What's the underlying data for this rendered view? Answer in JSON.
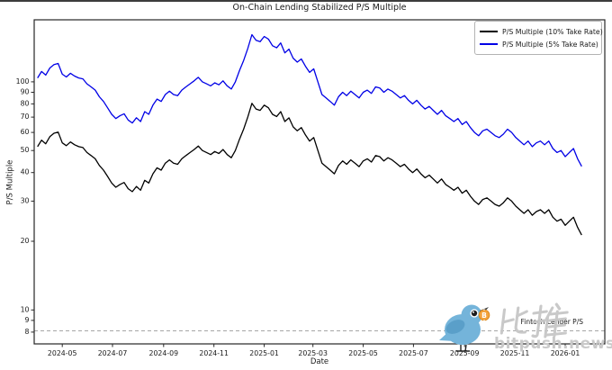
{
  "title": "On-Chain Lending Stabilized P/S Multiple",
  "watermark": {
    "brand_cjk": "比推",
    "brand_domain": "bitpush.news",
    "coin_symbol": "₿"
  },
  "chart_data": {
    "type": "line",
    "title": "On-Chain Lending Stabilized P/S Multiple",
    "xlabel": "Date",
    "ylabel": "P/S Multiple",
    "yscale": "log",
    "ylim": [
      7.1,
      187
    ],
    "xlim": [
      "2024-03-28",
      "2026-02-18"
    ],
    "grid": false,
    "legend_position": "upper right",
    "y_ticks": [
      100,
      90,
      80,
      70,
      60,
      50,
      40,
      30,
      20,
      10,
      9,
      8
    ],
    "x_ticks": [
      {
        "date": "2024-05-01",
        "label": "2024-05"
      },
      {
        "date": "2024-07-01",
        "label": "2024-07"
      },
      {
        "date": "2024-09-01",
        "label": "2024-09"
      },
      {
        "date": "2024-11-01",
        "label": "2024-11"
      },
      {
        "date": "2025-01-01",
        "label": "2025-01"
      },
      {
        "date": "2025-03-01",
        "label": "2025-03"
      },
      {
        "date": "2025-05-01",
        "label": "2025-05"
      },
      {
        "date": "2025-07-01",
        "label": "2025-07"
      },
      {
        "date": "2025-09-01",
        "label": "2025-09"
      },
      {
        "date": "2025-11-01",
        "label": "2025-11"
      },
      {
        "date": "2026-01-01",
        "label": "2026-01"
      }
    ],
    "reference_line": {
      "value": 8.1,
      "label": "Fintech Lender P/S",
      "color": "#a6a6a6",
      "style": "dashed"
    },
    "series": [
      {
        "name": "P/S Multiple (10% Take Rate)",
        "color": "#000000",
        "start_date": "2024-04-01",
        "interval_days": 5,
        "values": [
          52,
          55.5,
          53.5,
          57.5,
          59.5,
          60.2,
          54,
          52.5,
          54.5,
          53,
          52,
          51.5,
          49,
          47.5,
          46,
          43,
          41,
          38.5,
          36,
          34.5,
          35.5,
          36.2,
          34,
          33,
          34.8,
          33.5,
          37,
          36,
          39.5,
          42,
          41,
          44,
          45.5,
          44,
          43.5,
          46,
          47.5,
          49,
          50.5,
          52.3,
          50,
          49,
          48,
          49.5,
          48.5,
          50.5,
          48,
          46.5,
          50,
          56,
          62,
          70,
          80.5,
          76,
          75,
          79,
          77,
          72,
          70.5,
          74,
          67,
          69.5,
          63.5,
          61,
          63,
          58.5,
          55,
          57,
          50,
          44,
          42.5,
          41,
          39.5,
          43,
          45,
          43.5,
          45.5,
          44,
          42.5,
          45,
          46,
          44.5,
          47.5,
          47,
          45,
          46.5,
          45.5,
          44,
          42.5,
          43.5,
          41.5,
          40,
          41.5,
          39.5,
          38,
          39,
          37.5,
          36,
          37.5,
          35.5,
          34.5,
          33.5,
          34.5,
          32.5,
          33.5,
          31.5,
          30,
          29,
          30.5,
          31,
          30,
          29,
          28.5,
          29.5,
          31,
          30,
          28.5,
          27.5,
          26.5,
          27.5,
          26,
          27,
          27.5,
          26.5,
          27.5,
          25.5,
          24.5,
          25,
          23.5,
          24.5,
          25.5,
          23,
          21.3
        ]
      },
      {
        "name": "P/S Multiple (5% Take Rate)",
        "color": "#0000e6",
        "start_date": "2024-04-01",
        "interval_days": 5,
        "values": [
          104,
          111,
          107,
          115,
          119,
          120.4,
          108,
          105,
          109,
          106,
          104,
          103,
          98,
          95,
          92,
          86,
          82,
          77,
          72,
          69,
          71,
          72.4,
          68,
          66,
          69.6,
          67,
          74,
          72,
          79,
          84,
          82,
          88,
          91,
          88,
          87,
          92,
          95,
          98,
          101,
          104.6,
          100,
          98,
          96,
          99,
          97,
          101,
          96,
          93,
          100,
          112,
          124,
          140,
          161,
          152,
          150,
          158,
          154,
          144,
          141,
          148,
          134,
          139,
          127,
          122,
          126,
          117,
          110,
          114,
          100,
          88,
          85,
          82,
          79,
          86,
          90,
          87,
          91,
          88,
          85,
          90,
          92,
          89,
          95,
          94,
          90,
          93,
          91,
          88,
          85,
          87,
          83,
          80,
          83,
          79,
          76,
          78,
          75,
          72,
          75,
          71,
          69,
          67,
          69,
          65,
          67,
          63,
          60,
          58,
          61,
          62,
          60,
          58,
          57,
          59,
          62,
          60,
          57,
          55,
          53,
          55,
          52,
          54,
          55,
          53,
          55,
          51,
          49,
          50,
          47,
          49,
          51,
          46,
          42.6
        ]
      }
    ]
  }
}
